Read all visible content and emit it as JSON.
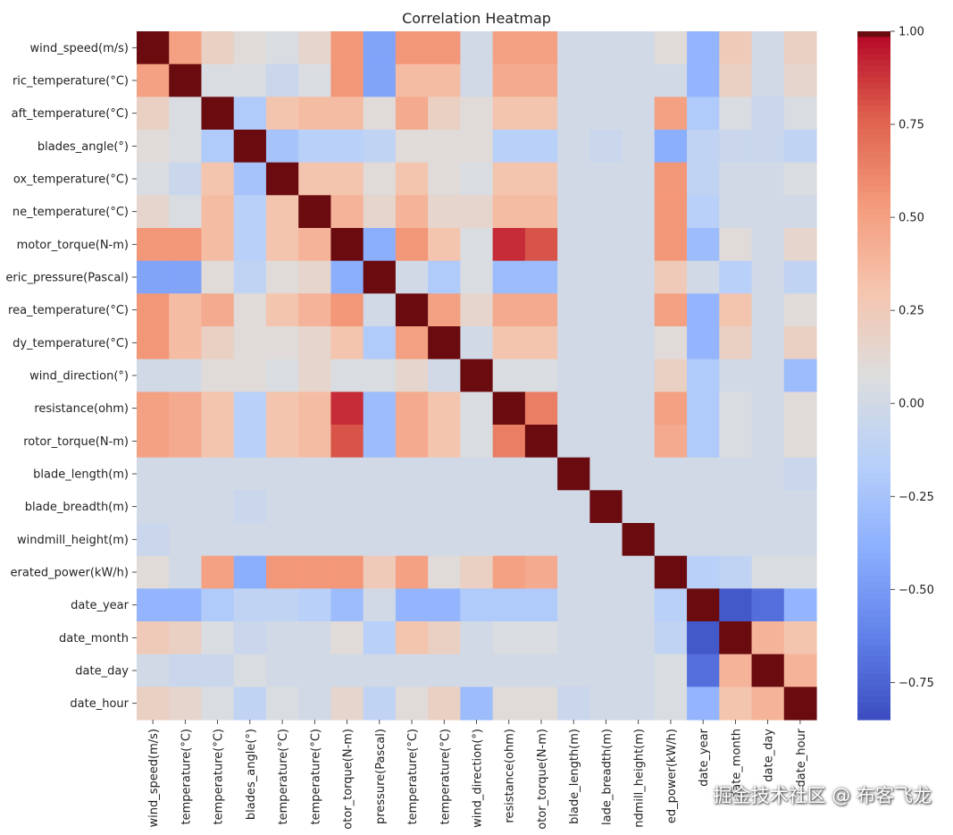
{
  "chart_data": {
    "type": "heatmap",
    "title": "Correlation Heatmap",
    "colormap": "coolwarm",
    "vmin": -0.85,
    "vmax": 1.0,
    "variables": [
      "wind_speed(m/s)",
      "atmospheric_temperature(°C)",
      "shaft_temperature(°C)",
      "blades_angle(°)",
      "gearbox_temperature(°C)",
      "engine_temperature(°C)",
      "motor_torque(N-m)",
      "atmospheric_pressure(Pascal)",
      "area_temperature(°C)",
      "windmill_body_temperature(°C)",
      "wind_direction(°)",
      "resistance(ohm)",
      "rotor_torque(N-m)",
      "blade_length(m)",
      "blade_breadth(m)",
      "windmill_height(m)",
      "generated_power(kW/h)",
      "date_year",
      "date_month",
      "date_day",
      "date_hour"
    ],
    "row_labels_visible": [
      "wind_speed(m/s)",
      "ric_temperature(°C)",
      "aft_temperature(°C)",
      "blades_angle(°)",
      "ox_temperature(°C)",
      "ne_temperature(°C)",
      "motor_torque(N-m)",
      "eric_pressure(Pascal)",
      "rea_temperature(°C)",
      "dy_temperature(°C)",
      "wind_direction(°)",
      "resistance(ohm)",
      "rotor_torque(N-m)",
      "blade_length(m)",
      "blade_breadth(m)",
      "windmill_height(m)",
      "erated_power(kW/h)",
      "date_year",
      "date_month",
      "date_day",
      "date_hour"
    ],
    "col_labels_visible": [
      "wind_speed(m/s)",
      "temperature(°C)",
      "temperature(°C)",
      "blades_angle(°)",
      "temperature(°C)",
      "temperature(°C)",
      "otor_torque(N-m)",
      "pressure(Pascal)",
      "temperature(°C)",
      "temperature(°C)",
      "wind_direction(°)",
      "resistance(ohm)",
      "otor_torque(N-m)",
      "blade_length(m)",
      "lade_breadth(m)",
      "ndmill_height(m)",
      "ed_power(kW/h)",
      "date_year",
      "date_month",
      "date_day",
      "date_hour"
    ],
    "matrix": [
      [
        1.0,
        0.5,
        0.2,
        0.1,
        0.05,
        0.15,
        0.55,
        -0.45,
        0.55,
        0.55,
        0.0,
        0.5,
        0.5,
        0.0,
        0.0,
        0.0,
        0.1,
        -0.35,
        0.25,
        0.0,
        0.2
      ],
      [
        0.5,
        1.0,
        0.05,
        0.05,
        -0.05,
        0.05,
        0.55,
        -0.45,
        0.35,
        0.35,
        0.0,
        0.45,
        0.45,
        0.0,
        0.0,
        0.0,
        0.0,
        -0.35,
        0.2,
        0.0,
        0.15
      ],
      [
        0.2,
        0.05,
        1.0,
        -0.2,
        0.3,
        0.35,
        0.35,
        0.1,
        0.45,
        0.2,
        0.1,
        0.3,
        0.3,
        0.0,
        0.0,
        0.0,
        0.5,
        -0.2,
        0.05,
        -0.05,
        0.05
      ],
      [
        0.1,
        0.05,
        -0.2,
        1.0,
        -0.25,
        -0.15,
        -0.15,
        -0.1,
        0.1,
        0.1,
        0.1,
        -0.15,
        -0.15,
        0.0,
        -0.05,
        0.0,
        -0.4,
        -0.1,
        -0.05,
        -0.05,
        -0.1
      ],
      [
        0.05,
        -0.05,
        0.3,
        -0.25,
        1.0,
        0.3,
        0.3,
        0.1,
        0.3,
        0.1,
        0.05,
        0.3,
        0.3,
        0.0,
        0.0,
        0.0,
        0.55,
        -0.1,
        0.0,
        0.0,
        0.05
      ],
      [
        0.15,
        0.05,
        0.35,
        -0.15,
        0.3,
        1.0,
        0.4,
        0.15,
        0.4,
        0.15,
        0.15,
        0.35,
        0.35,
        0.0,
        0.0,
        0.0,
        0.55,
        -0.15,
        0.0,
        0.0,
        0.0
      ],
      [
        0.55,
        0.55,
        0.35,
        -0.15,
        0.3,
        0.4,
        1.0,
        -0.4,
        0.55,
        0.3,
        0.05,
        0.9,
        0.8,
        0.0,
        0.0,
        0.0,
        0.55,
        -0.3,
        0.1,
        0.0,
        0.15
      ],
      [
        -0.45,
        -0.45,
        0.1,
        -0.1,
        0.1,
        0.15,
        -0.4,
        1.0,
        0.0,
        -0.2,
        0.05,
        -0.3,
        -0.3,
        0.0,
        0.0,
        0.0,
        0.25,
        0.0,
        -0.15,
        0.0,
        -0.1
      ],
      [
        0.55,
        0.35,
        0.45,
        0.1,
        0.3,
        0.4,
        0.55,
        0.0,
        1.0,
        0.5,
        0.15,
        0.45,
        0.45,
        0.0,
        0.0,
        0.0,
        0.5,
        -0.35,
        0.3,
        0.0,
        0.1
      ],
      [
        0.55,
        0.35,
        0.2,
        0.1,
        0.1,
        0.15,
        0.3,
        -0.2,
        0.5,
        1.0,
        0.0,
        0.3,
        0.3,
        0.0,
        0.0,
        0.0,
        0.1,
        -0.35,
        0.2,
        0.0,
        0.2
      ],
      [
        0.0,
        0.0,
        0.1,
        0.1,
        0.05,
        0.15,
        0.05,
        0.05,
        0.15,
        0.0,
        1.0,
        0.05,
        0.05,
        0.0,
        0.0,
        0.0,
        0.2,
        -0.2,
        0.0,
        0.0,
        -0.3
      ],
      [
        0.5,
        0.45,
        0.3,
        -0.15,
        0.3,
        0.35,
        0.9,
        -0.3,
        0.45,
        0.3,
        0.05,
        1.0,
        0.65,
        0.0,
        0.0,
        0.0,
        0.5,
        -0.2,
        0.05,
        0.0,
        0.1
      ],
      [
        0.5,
        0.45,
        0.3,
        -0.15,
        0.3,
        0.35,
        0.8,
        -0.3,
        0.45,
        0.3,
        0.05,
        0.65,
        1.0,
        0.0,
        0.0,
        0.0,
        0.45,
        -0.2,
        0.05,
        0.0,
        0.1
      ],
      [
        0.0,
        0.0,
        0.0,
        0.0,
        0.0,
        0.0,
        0.0,
        0.0,
        0.0,
        0.0,
        0.0,
        0.0,
        0.0,
        1.0,
        0.0,
        0.0,
        0.0,
        0.0,
        0.0,
        0.0,
        -0.05
      ],
      [
        0.0,
        0.0,
        0.0,
        -0.05,
        0.0,
        0.0,
        0.0,
        0.0,
        0.0,
        0.0,
        0.0,
        0.0,
        0.0,
        0.0,
        1.0,
        0.0,
        0.0,
        0.0,
        0.0,
        0.0,
        0.0
      ],
      [
        -0.05,
        0.0,
        0.0,
        0.0,
        0.0,
        0.0,
        0.0,
        0.0,
        0.0,
        0.0,
        0.0,
        0.0,
        0.0,
        0.0,
        0.0,
        1.0,
        0.0,
        0.0,
        0.0,
        0.0,
        0.0
      ],
      [
        0.1,
        0.0,
        0.5,
        -0.4,
        0.55,
        0.55,
        0.55,
        0.25,
        0.5,
        0.1,
        0.2,
        0.5,
        0.45,
        0.0,
        0.0,
        0.0,
        1.0,
        -0.15,
        -0.1,
        0.05,
        0.05
      ],
      [
        -0.35,
        -0.35,
        -0.2,
        -0.1,
        -0.1,
        -0.15,
        -0.3,
        0.0,
        -0.35,
        -0.35,
        -0.2,
        -0.2,
        -0.2,
        0.0,
        0.0,
        0.0,
        -0.15,
        1.0,
        -0.8,
        -0.7,
        -0.35
      ],
      [
        0.25,
        0.2,
        0.05,
        -0.05,
        0.0,
        0.0,
        0.1,
        -0.15,
        0.3,
        0.2,
        0.0,
        0.05,
        0.05,
        0.0,
        0.0,
        0.0,
        -0.1,
        -0.8,
        1.0,
        0.4,
        0.3
      ],
      [
        0.0,
        -0.05,
        -0.05,
        0.05,
        0.0,
        0.0,
        0.0,
        0.0,
        0.0,
        0.0,
        0.0,
        0.0,
        0.0,
        0.0,
        0.0,
        0.0,
        0.05,
        -0.7,
        0.4,
        1.0,
        0.4
      ],
      [
        0.2,
        0.15,
        0.05,
        -0.1,
        0.05,
        0.0,
        0.15,
        -0.1,
        0.1,
        0.2,
        -0.3,
        0.1,
        0.1,
        -0.05,
        0.0,
        0.0,
        0.05,
        -0.35,
        0.3,
        0.4,
        1.0
      ]
    ],
    "colorbar_ticks": [
      1.0,
      0.75,
      0.5,
      0.25,
      0.0,
      -0.25,
      -0.5,
      -0.75
    ],
    "colorbar_tick_labels": [
      "1.00",
      "0.75",
      "0.50",
      "0.25",
      "0.00",
      "−0.25",
      "−0.50",
      "−0.75"
    ]
  },
  "watermark": "掘金技术社区 @ 布客飞龙"
}
